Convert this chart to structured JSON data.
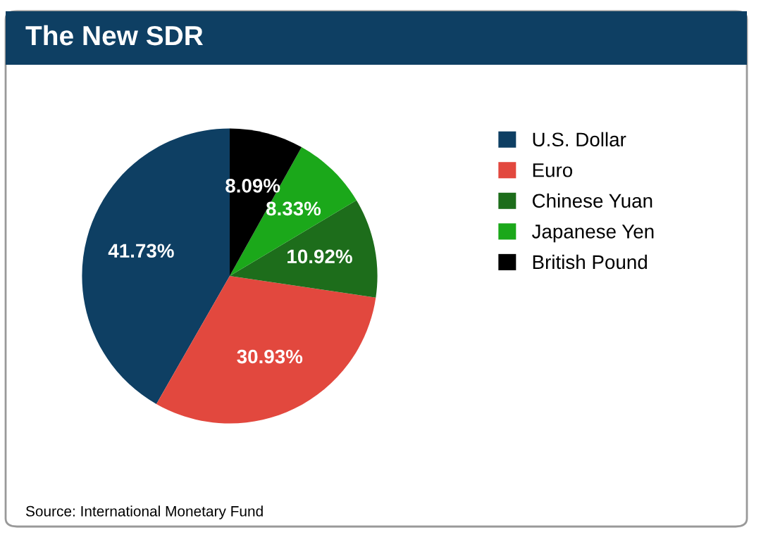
{
  "chart_data": {
    "type": "pie",
    "title": "The New SDR",
    "categories": [
      "U.S. Dollar",
      "Euro",
      "Chinese Yuan",
      "Japanese Yen",
      "British Pound"
    ],
    "values": [
      41.73,
      30.93,
      10.92,
      8.33,
      8.09
    ],
    "colors": [
      "#0e3f63",
      "#e2483e",
      "#1d6d1b",
      "#1ba81a",
      "#000000"
    ],
    "value_labels": [
      "41.73%",
      "30.93%",
      "10.92%",
      "8.33%",
      "8.09%"
    ],
    "legend": "right",
    "annotations": [
      "Source: International Monetary Fund"
    ]
  }
}
